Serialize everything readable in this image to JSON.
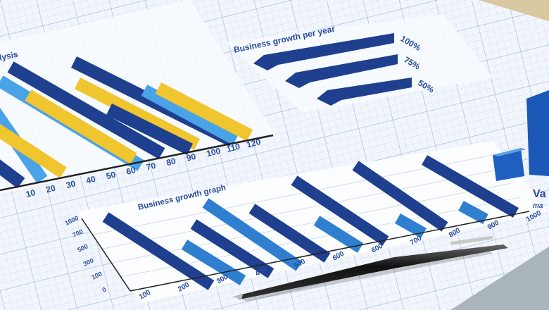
{
  "colors": {
    "paper": "#f4f8fd",
    "grid": "#b9cdea",
    "dark_blue": "#1f3f8f",
    "mid_blue": "#2f7fd0",
    "light_blue": "#4aa3e6",
    "yellow": "#f1c52e",
    "text_blue": "#2a4c9c"
  },
  "left_chart": {
    "title_fragment": "lysis",
    "x_ticks": [
      "10",
      "20",
      "30",
      "40",
      "50",
      "60",
      "70",
      "80",
      "90",
      "100",
      "110",
      "120"
    ]
  },
  "per_year_chart": {
    "title": "Business growth per year",
    "labels": [
      "100%",
      "75%",
      "50%"
    ]
  },
  "growth_graph": {
    "title": "Business growth graph",
    "y_ticks": [
      "0",
      "100",
      "300",
      "500",
      "700",
      "1000"
    ],
    "x_ticks": [
      "100",
      "200",
      "300",
      "400",
      "500",
      "600",
      "600",
      "700",
      "800",
      "900",
      "1000"
    ]
  },
  "right_fragment": {
    "heading": "Va",
    "subtext": "ma"
  },
  "objects": [
    "pen-icon"
  ]
}
